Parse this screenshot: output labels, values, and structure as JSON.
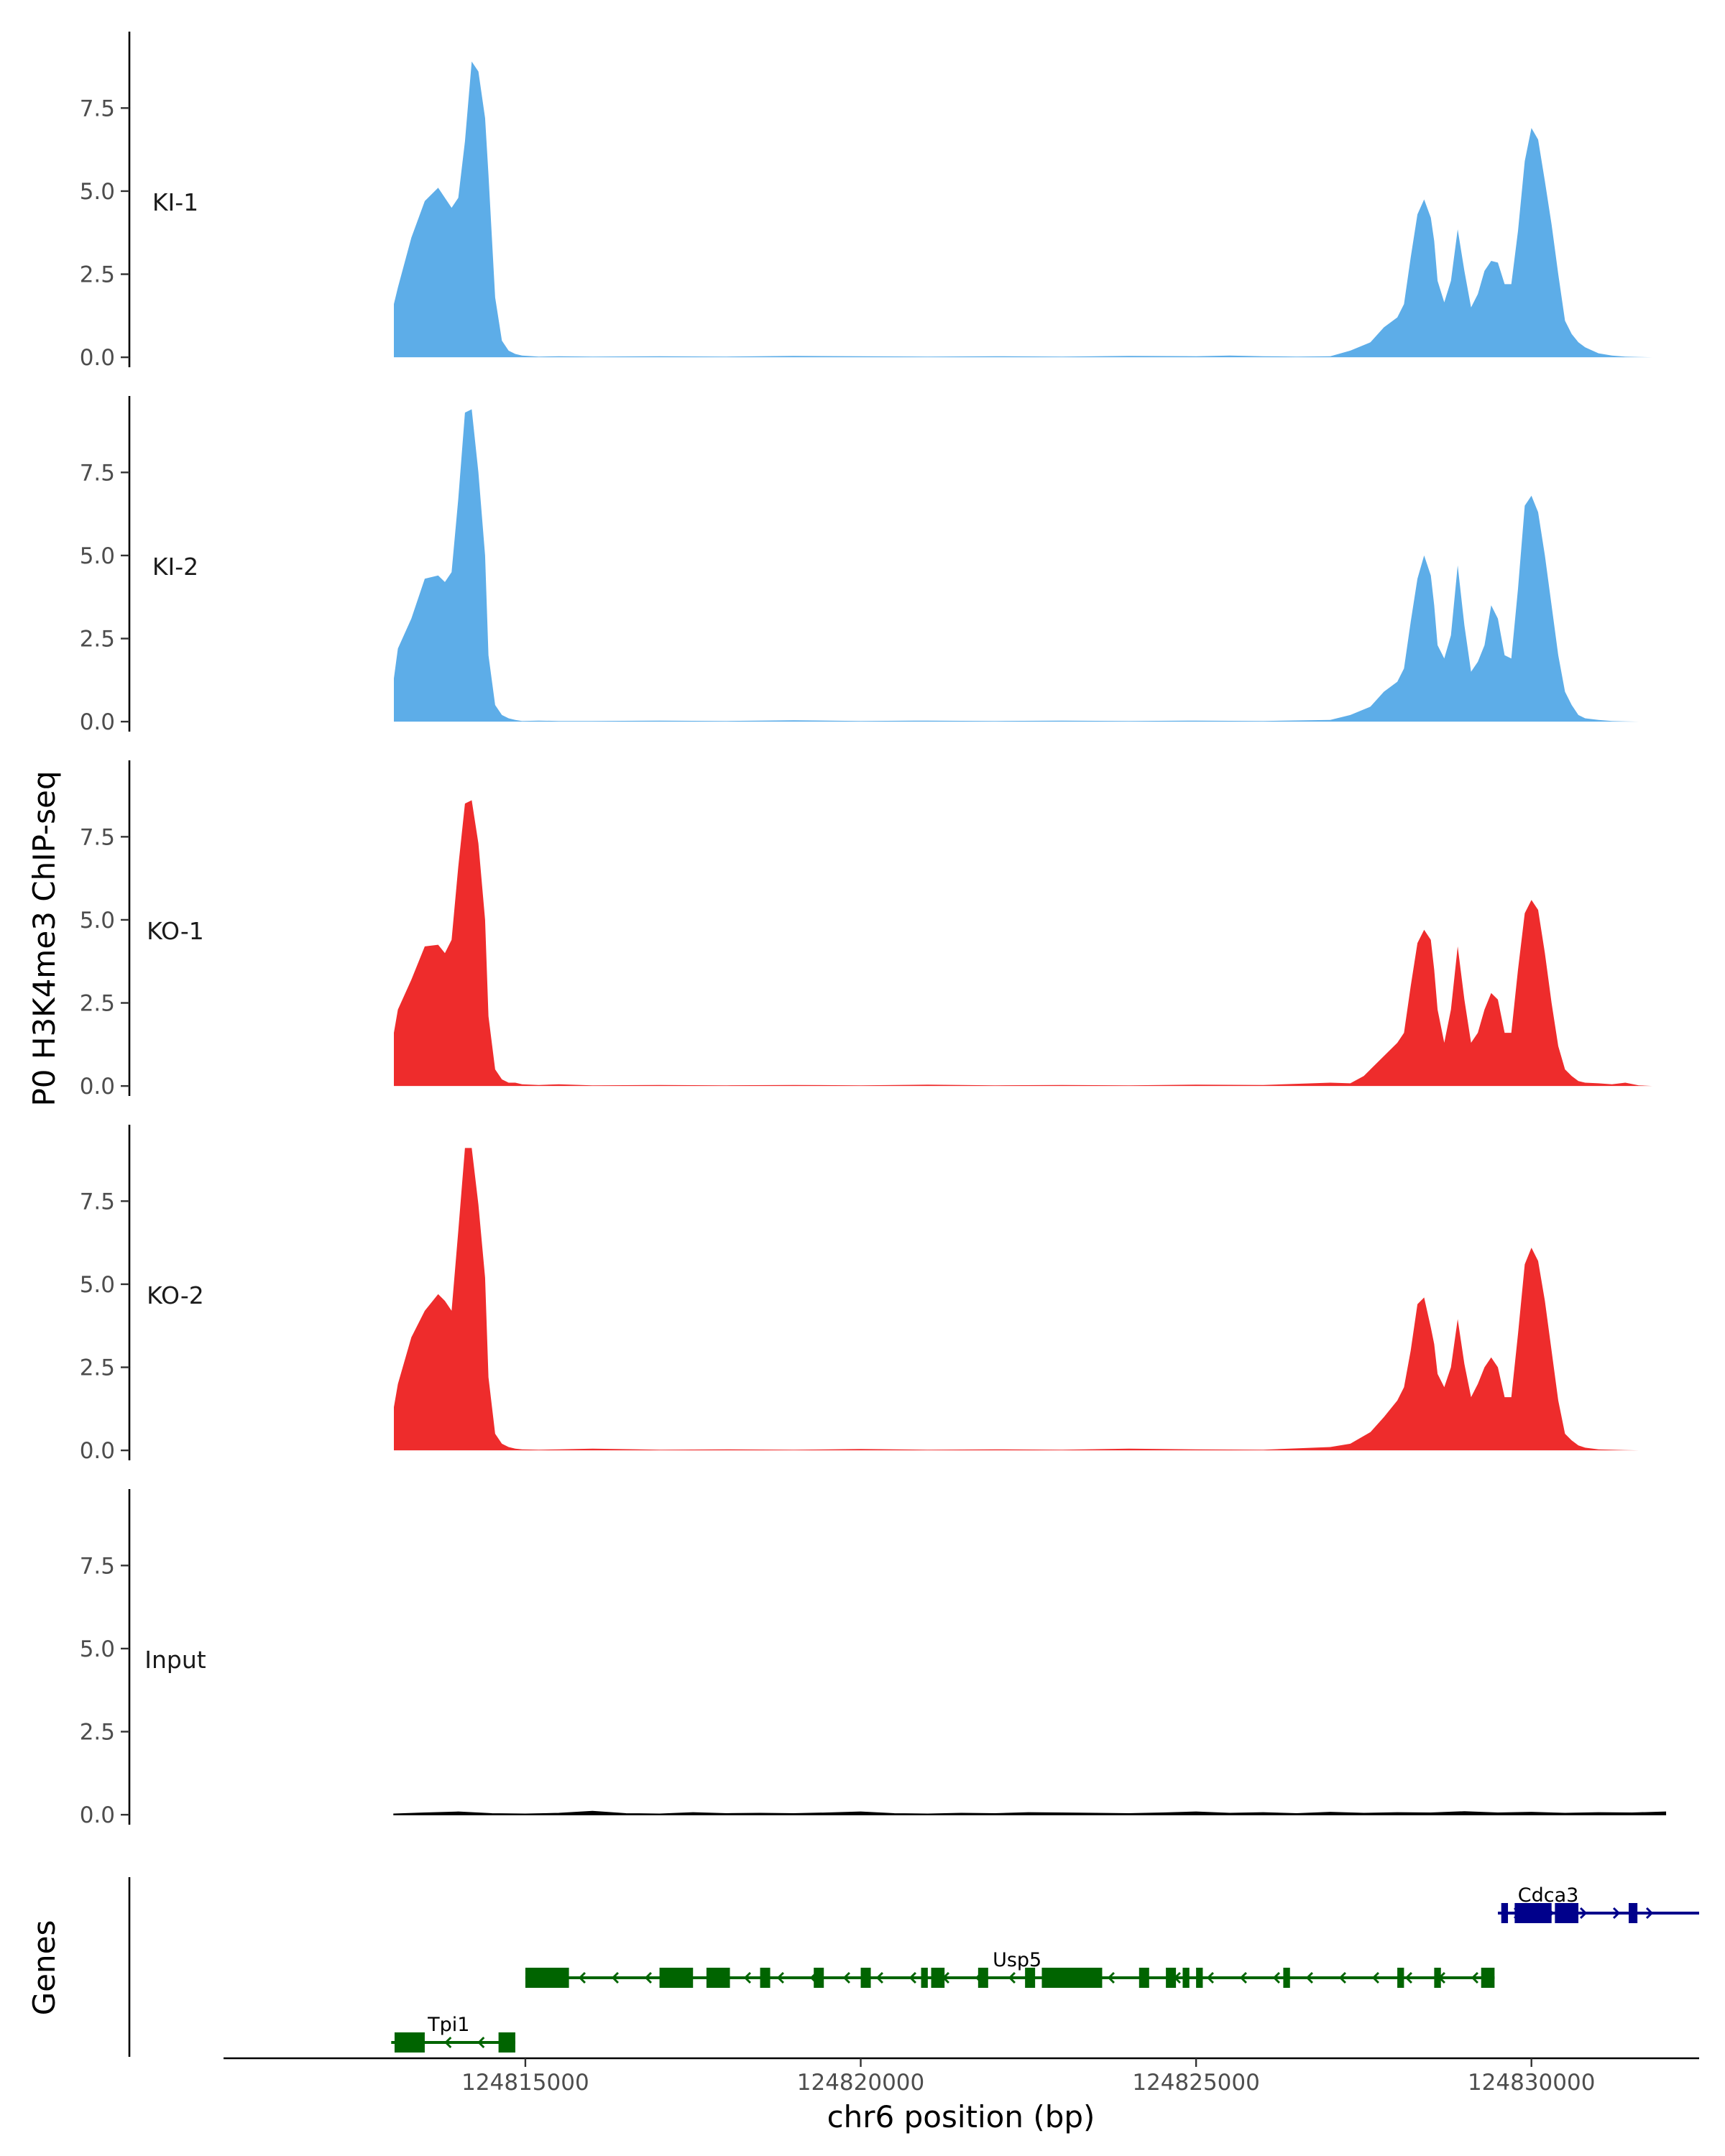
{
  "chart_data": {
    "type": "area",
    "ylabel": "P0 H3K4me3 ChIP-seq",
    "xlabel": "chr6 position (bp)",
    "gene_panel_label": "Genes",
    "xlim": [
      124810500,
      124832500
    ],
    "ylim": [
      -0.3,
      9.8
    ],
    "y_ticks": [
      0,
      2.5,
      5,
      7.5
    ],
    "y_tick_labels": [
      "0.0",
      "2.5",
      "5.0",
      "7.5"
    ],
    "x_ticks": [
      124815000,
      124820000,
      124825000,
      124830000
    ],
    "x_tick_labels": [
      "124815000",
      "124820000",
      "124825000",
      "124830000"
    ],
    "grid": false,
    "colors": {
      "KI": "#5dade8",
      "KO": "#ee2c2c",
      "Input": "#000000",
      "usp_tpi": "#006400",
      "cdca3": "#00008b"
    },
    "tracks": [
      {
        "name": "KI-1",
        "color": "#5dade8",
        "x": [
          124813040,
          124813100,
          124813300,
          124813500,
          124813700,
          124813900,
          124814000,
          124814100,
          124814200,
          124814300,
          124814400,
          124814450,
          124814550,
          124814650,
          124814750,
          124814850,
          124814950,
          124815200,
          124815500,
          124816000,
          124817000,
          124818000,
          124819000,
          124820000,
          124821000,
          124822000,
          124823000,
          124824000,
          124825000,
          124825500,
          124826000,
          124826500,
          124827000,
          124827300,
          124827600,
          124827800,
          124828000,
          124828100,
          124828200,
          124828300,
          124828400,
          124828500,
          124828550,
          124828600,
          124828700,
          124828800,
          124828900,
          124829000,
          124829100,
          124829200,
          124829300,
          124829400,
          124829500,
          124829600,
          124829700,
          124829800,
          124829900,
          124830000,
          124830100,
          124830200,
          124830300,
          124830400,
          124830500,
          124830600,
          124830700,
          124830800,
          124831000,
          124831200,
          124831400,
          124831600,
          124831800,
          124832000
        ],
        "y": [
          1.6,
          2.1,
          3.6,
          4.7,
          5.1,
          4.5,
          4.8,
          6.5,
          8.9,
          8.6,
          7.2,
          5.5,
          1.8,
          0.5,
          0.2,
          0.1,
          0.05,
          0.02,
          0.03,
          0.02,
          0.03,
          0.02,
          0.04,
          0.03,
          0.02,
          0.03,
          0.02,
          0.04,
          0.03,
          0.05,
          0.03,
          0.02,
          0.03,
          0.2,
          0.45,
          0.9,
          1.2,
          1.6,
          3.0,
          4.3,
          4.75,
          4.2,
          3.5,
          2.3,
          1.65,
          2.3,
          3.85,
          2.6,
          1.5,
          1.9,
          2.6,
          2.9,
          2.85,
          2.2,
          2.2,
          3.8,
          5.9,
          6.9,
          6.55,
          5.3,
          4.0,
          2.5,
          1.1,
          0.7,
          0.45,
          0.3,
          0.12,
          0.05,
          0.02,
          0.01,
          0.0,
          0.0
        ]
      },
      {
        "name": "KI-2",
        "color": "#5dade8",
        "x": [
          124813040,
          124813100,
          124813300,
          124813500,
          124813700,
          124813800,
          124813900,
          124814000,
          124814100,
          124814200,
          124814300,
          124814400,
          124814450,
          124814550,
          124814650,
          124814750,
          124814850,
          124814950,
          124815200,
          124815500,
          124816000,
          124817000,
          124818000,
          124819000,
          124820000,
          124821000,
          124822000,
          124823000,
          124824000,
          124825000,
          124826000,
          124827000,
          124827300,
          124827600,
          124827800,
          124828000,
          124828100,
          124828200,
          124828300,
          124828400,
          124828500,
          124828550,
          124828600,
          124828700,
          124828800,
          124828900,
          124829000,
          124829100,
          124829200,
          124829300,
          124829400,
          124829500,
          124829600,
          124829700,
          124829800,
          124829900,
          124830000,
          124830100,
          124830200,
          124830300,
          124830400,
          124830500,
          124830600,
          124830700,
          124830800,
          124831000,
          124831200,
          124831400,
          124831600,
          124831800,
          124832000,
          124832200
        ],
        "y": [
          1.3,
          2.2,
          3.1,
          4.3,
          4.4,
          4.2,
          4.5,
          6.7,
          9.3,
          9.4,
          7.5,
          5.0,
          2.0,
          0.5,
          0.2,
          0.1,
          0.05,
          0.02,
          0.03,
          0.02,
          0.02,
          0.03,
          0.02,
          0.04,
          0.02,
          0.03,
          0.02,
          0.03,
          0.02,
          0.03,
          0.02,
          0.05,
          0.2,
          0.45,
          0.9,
          1.2,
          1.6,
          3.0,
          4.3,
          5.0,
          4.4,
          3.5,
          2.3,
          1.9,
          2.6,
          4.7,
          2.9,
          1.5,
          1.8,
          2.3,
          3.5,
          3.1,
          2.0,
          1.9,
          4.0,
          6.5,
          6.8,
          6.3,
          5.0,
          3.5,
          2.0,
          0.9,
          0.5,
          0.2,
          0.1,
          0.05,
          0.02,
          0.01,
          0.0,
          0.0,
          0.0,
          0.0
        ]
      },
      {
        "name": "KO-1",
        "color": "#ee2c2c",
        "x": [
          124813040,
          124813100,
          124813300,
          124813500,
          124813700,
          124813800,
          124813900,
          124814000,
          124814100,
          124814200,
          124814300,
          124814400,
          124814450,
          124814550,
          124814650,
          124814750,
          124814850,
          124814950,
          124815200,
          124815500,
          124816000,
          124817000,
          124818000,
          124819000,
          124820000,
          124821000,
          124822000,
          124823000,
          124824000,
          124825000,
          124826000,
          124827000,
          124827300,
          124827500,
          124827600,
          124827800,
          124828000,
          124828100,
          124828200,
          124828300,
          124828400,
          124828500,
          124828550,
          124828600,
          124828700,
          124828800,
          124828900,
          124829000,
          124829100,
          124829200,
          124829300,
          124829400,
          124829500,
          124829600,
          124829700,
          124829800,
          124829900,
          124830000,
          124830100,
          124830200,
          124830300,
          124830400,
          124830500,
          124830600,
          124830700,
          124830800,
          124831000,
          124831200,
          124831400,
          124831600,
          124831800,
          124832000
        ],
        "y": [
          1.6,
          2.3,
          3.2,
          4.2,
          4.25,
          4.0,
          4.4,
          6.6,
          8.5,
          8.6,
          7.3,
          5.0,
          2.1,
          0.5,
          0.2,
          0.1,
          0.1,
          0.05,
          0.03,
          0.05,
          0.02,
          0.03,
          0.02,
          0.03,
          0.02,
          0.04,
          0.02,
          0.03,
          0.02,
          0.04,
          0.03,
          0.1,
          0.08,
          0.3,
          0.5,
          0.9,
          1.3,
          1.6,
          3.0,
          4.3,
          4.7,
          4.4,
          3.5,
          2.3,
          1.3,
          2.3,
          4.2,
          2.6,
          1.3,
          1.6,
          2.3,
          2.8,
          2.6,
          1.6,
          1.6,
          3.5,
          5.2,
          5.6,
          5.3,
          4.0,
          2.5,
          1.2,
          0.5,
          0.3,
          0.15,
          0.1,
          0.08,
          0.05,
          0.1,
          0.02,
          0.0,
          0.0
        ]
      },
      {
        "name": "KO-2",
        "color": "#ee2c2c",
        "x": [
          124813040,
          124813100,
          124813300,
          124813500,
          124813700,
          124813800,
          124813900,
          124814000,
          124814100,
          124814200,
          124814300,
          124814400,
          124814450,
          124814550,
          124814650,
          124814750,
          124814850,
          124814950,
          124815200,
          124815500,
          124816000,
          124817000,
          124818000,
          124819000,
          124820000,
          124821000,
          124822000,
          124823000,
          124824000,
          124825000,
          124826000,
          124827000,
          124827300,
          124827600,
          124827800,
          124828000,
          124828100,
          124828200,
          124828300,
          124828400,
          124828500,
          124828550,
          124828600,
          124828700,
          124828800,
          124828900,
          124829000,
          124829100,
          124829200,
          124829300,
          124829400,
          124829500,
          124829600,
          124829700,
          124829800,
          124829900,
          124830000,
          124830100,
          124830200,
          124830300,
          124830400,
          124830500,
          124830600,
          124830700,
          124830800,
          124831000,
          124831200,
          124831400,
          124831600,
          124831800,
          124832000
        ],
        "y": [
          1.3,
          2.0,
          3.4,
          4.2,
          4.7,
          4.5,
          4.2,
          6.6,
          9.1,
          9.1,
          7.4,
          5.2,
          2.2,
          0.5,
          0.2,
          0.1,
          0.05,
          0.03,
          0.02,
          0.03,
          0.05,
          0.02,
          0.03,
          0.02,
          0.04,
          0.02,
          0.03,
          0.02,
          0.05,
          0.03,
          0.02,
          0.1,
          0.2,
          0.55,
          1.0,
          1.5,
          1.9,
          3.0,
          4.4,
          4.6,
          3.7,
          3.2,
          2.3,
          1.9,
          2.5,
          3.95,
          2.6,
          1.6,
          2.0,
          2.5,
          2.8,
          2.5,
          1.6,
          1.6,
          3.5,
          5.6,
          6.1,
          5.7,
          4.5,
          3.0,
          1.5,
          0.5,
          0.3,
          0.15,
          0.08,
          0.03,
          0.02,
          0.01,
          0.0,
          0.0,
          0.0
        ]
      },
      {
        "name": "Input",
        "color": "#000000",
        "x": [
          124813040,
          124813500,
          124814000,
          124814500,
          124815000,
          124815500,
          124816000,
          124816500,
          124817000,
          124817500,
          124818000,
          124818500,
          124819000,
          124819500,
          124820000,
          124820500,
          124821000,
          124821500,
          124822000,
          124822500,
          124823000,
          124823500,
          124824000,
          124824500,
          124825000,
          124825500,
          124826000,
          124826500,
          124827000,
          124827500,
          124828000,
          124828500,
          124829000,
          124829500,
          124830000,
          124830500,
          124831000,
          124831500,
          124832000
        ],
        "y": [
          0.02,
          0.05,
          0.08,
          0.03,
          0.02,
          0.04,
          0.1,
          0.03,
          0.02,
          0.06,
          0.03,
          0.04,
          0.03,
          0.05,
          0.08,
          0.03,
          0.02,
          0.04,
          0.03,
          0.06,
          0.05,
          0.04,
          0.03,
          0.05,
          0.08,
          0.04,
          0.06,
          0.03,
          0.07,
          0.04,
          0.06,
          0.05,
          0.09,
          0.05,
          0.07,
          0.04,
          0.06,
          0.05,
          0.08
        ]
      }
    ],
    "genes": [
      {
        "name": "Cdca3",
        "strand": "+",
        "color": "#00008b",
        "start": 124829500,
        "end": 124832500,
        "row": 0,
        "exons": [
          [
            124829550,
            124829650
          ],
          [
            124829750,
            124830300
          ],
          [
            124830350,
            124830700
          ],
          [
            124831450,
            124831580
          ]
        ]
      },
      {
        "name": "Usp5",
        "strand": "-",
        "color": "#006400",
        "start": 124815000,
        "end": 124829450,
        "row": 1,
        "exons": [
          [
            124815000,
            124815650
          ],
          [
            124817000,
            124817500
          ],
          [
            124817700,
            124818050
          ],
          [
            124818500,
            124818650
          ],
          [
            124819300,
            124819450
          ],
          [
            124820000,
            124820150
          ],
          [
            124820900,
            124821000
          ],
          [
            124821050,
            124821250
          ],
          [
            124821750,
            124821900
          ],
          [
            124822450,
            124822600
          ],
          [
            124822700,
            124823600
          ],
          [
            124824150,
            124824300
          ],
          [
            124824550,
            124824700
          ],
          [
            124824800,
            124824900
          ],
          [
            124825000,
            124825100
          ],
          [
            124826300,
            124826400
          ],
          [
            124828000,
            124828100
          ],
          [
            124828550,
            124828650
          ],
          [
            124829250,
            124829450
          ]
        ]
      },
      {
        "name": "Tpi1",
        "strand": "-",
        "color": "#006400",
        "start": 124813000,
        "end": 124814850,
        "row": 2,
        "exons": [
          [
            124813050,
            124813500
          ],
          [
            124814600,
            124814850
          ]
        ]
      }
    ]
  }
}
